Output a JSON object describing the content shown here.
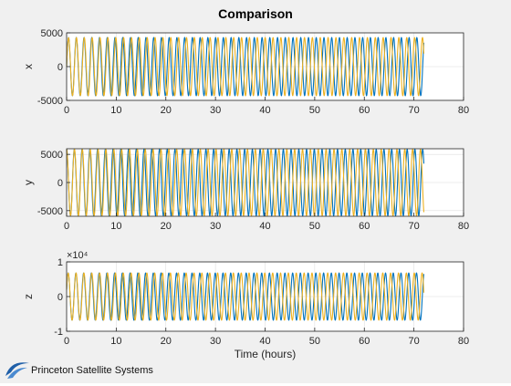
{
  "title": "Comparison",
  "colors": {
    "series_1": "#0072BD",
    "series_2": "#EDB120",
    "grid": "#dedede",
    "axes": "#262626"
  },
  "logo": {
    "name": "Princeton Satellite Systems"
  },
  "chart_data": [
    {
      "type": "line",
      "ylabel": "x",
      "xlabel": "",
      "xlim": [
        0,
        80
      ],
      "ylim": [
        -5000,
        5000
      ],
      "xticks": [
        0,
        10,
        20,
        30,
        40,
        50,
        60,
        70,
        80
      ],
      "yticks": [
        -5000,
        0,
        5000
      ],
      "ytick_labels": [
        "-5000",
        "0",
        "5000"
      ],
      "exponent_label": "",
      "grid": true,
      "series": [
        {
          "amplitude": 4300,
          "period_hours": 1.56,
          "x_start": 0,
          "x_end": 72,
          "phase": 0
        },
        {
          "amplitude": 4300,
          "period_hours": 1.585,
          "x_start": 0,
          "x_end": 72,
          "phase": 0
        }
      ]
    },
    {
      "type": "line",
      "ylabel": "y",
      "xlabel": "",
      "xlim": [
        0,
        80
      ],
      "ylim": [
        -6000,
        6000
      ],
      "xticks": [
        0,
        10,
        20,
        30,
        40,
        50,
        60,
        70,
        80
      ],
      "yticks": [
        -5000,
        0,
        5000
      ],
      "ytick_labels": [
        "-5000",
        "0",
        "5000"
      ],
      "exponent_label": "",
      "grid": true,
      "series": [
        {
          "amplitude": 5900,
          "period_hours": 1.56,
          "x_start": 0,
          "x_end": 72,
          "phase": 1.5708
        },
        {
          "amplitude": 5900,
          "period_hours": 1.585,
          "x_start": 0,
          "x_end": 72,
          "phase": 1.5708
        }
      ]
    },
    {
      "type": "line",
      "ylabel": "z",
      "xlabel": "Time (hours)",
      "xlim": [
        0,
        80
      ],
      "ylim": [
        -10000,
        10000
      ],
      "xticks": [
        0,
        10,
        20,
        30,
        40,
        50,
        60,
        70,
        80
      ],
      "yticks": [
        -10000,
        0,
        10000
      ],
      "ytick_labels": [
        "-1",
        "0",
        "1"
      ],
      "exponent_label": "×10⁴",
      "grid": true,
      "series": [
        {
          "amplitude": 6800,
          "period_hours": 1.56,
          "x_start": 0,
          "x_end": 72,
          "phase": 0.3
        },
        {
          "amplitude": 6800,
          "period_hours": 1.585,
          "x_start": 0,
          "x_end": 72,
          "phase": 0.3
        }
      ]
    }
  ]
}
